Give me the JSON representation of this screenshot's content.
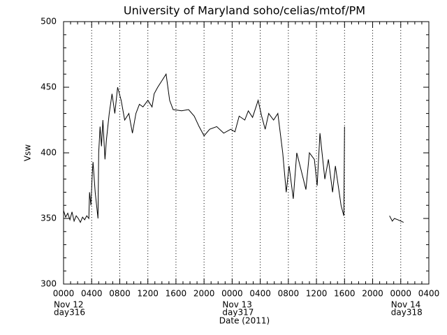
{
  "chart_data": {
    "type": "line",
    "title": "University of Maryland  soho/celias/mtof/PM",
    "y_label": "Vsw",
    "x_label": "Date (2011)",
    "x": [
      0,
      0.3,
      0.6,
      0.9,
      1.2,
      1.5,
      1.8,
      2.1,
      2.4,
      2.7,
      3.0,
      3.3,
      3.6,
      3.7,
      3.9,
      4.1,
      4.2,
      4.5,
      4.9,
      5.0,
      5.2,
      5.4,
      5.6,
      5.9,
      6.1,
      6.5,
      6.9,
      7.3,
      7.7,
      8.2,
      8.7,
      9.3,
      9.8,
      10.3,
      10.8,
      11.3,
      12.0,
      12.6,
      12.9,
      13.4,
      14.0,
      14.6,
      15.1,
      15.6,
      16.8,
      17.8,
      18.6,
      19.3,
      20.0,
      20.8,
      21.8,
      22.8,
      23.8,
      24.4,
      25.0,
      25.8,
      26.3,
      26.9,
      27.7,
      28.2,
      28.7,
      29.2,
      29.9,
      30.5,
      31.2,
      31.7,
      32.1,
      32.7,
      33.2,
      33.9,
      34.5,
      35.0,
      35.7,
      36.1,
      36.5,
      37.2,
      37.7,
      38.3,
      38.7,
      39.5,
      39.9,
      40.0,
      43.0,
      46.4,
      46.8,
      47.1,
      47.6,
      48.4
    ],
    "series": [
      {
        "name": "Vsw",
        "color": "#000000",
        "values": [
          356,
          351,
          354,
          349,
          355,
          348,
          352,
          350,
          347,
          351,
          349,
          352,
          350,
          370,
          360,
          385,
          393,
          370,
          350,
          400,
          420,
          405,
          425,
          395,
          410,
          430,
          445,
          430,
          450,
          440,
          425,
          430,
          415,
          430,
          437,
          435,
          440,
          435,
          445,
          450,
          455,
          460,
          440,
          433,
          432,
          433,
          428,
          420,
          413,
          418,
          420,
          415,
          418,
          416,
          428,
          425,
          432,
          427,
          440,
          428,
          418,
          430,
          425,
          430,
          400,
          370,
          390,
          365,
          400,
          385,
          372,
          400,
          395,
          375,
          415,
          380,
          395,
          370,
          390,
          360,
          352,
          420,
          null,
          352,
          348,
          350,
          349,
          347
        ]
      }
    ],
    "xlim": [
      0,
      52
    ],
    "ylim": [
      300,
      500
    ],
    "xticks": [
      {
        "value": 0,
        "label": "0000"
      },
      {
        "value": 4,
        "label": "0400"
      },
      {
        "value": 8,
        "label": "0800"
      },
      {
        "value": 12,
        "label": "1200"
      },
      {
        "value": 16,
        "label": "1600"
      },
      {
        "value": 20,
        "label": "2000"
      },
      {
        "value": 24,
        "label": "0000"
      },
      {
        "value": 28,
        "label": "0400"
      },
      {
        "value": 32,
        "label": "0800"
      },
      {
        "value": 36,
        "label": "1200"
      },
      {
        "value": 40,
        "label": "1600"
      },
      {
        "value": 44,
        "label": "2000"
      },
      {
        "value": 48,
        "label": "0000"
      },
      {
        "value": 52,
        "label": "0400"
      }
    ],
    "x_date_labels": [
      {
        "value": 0,
        "label": "Nov 12"
      },
      {
        "value": 24,
        "label": "Nov 13"
      },
      {
        "value": 48,
        "label": "Nov 14"
      }
    ],
    "x_day_labels": [
      {
        "value": 0,
        "label": "day316"
      },
      {
        "value": 24,
        "label": "day317"
      },
      {
        "value": 48,
        "label": "day318"
      }
    ],
    "yticks": [
      300,
      350,
      400,
      450,
      500
    ],
    "grid": true
  }
}
